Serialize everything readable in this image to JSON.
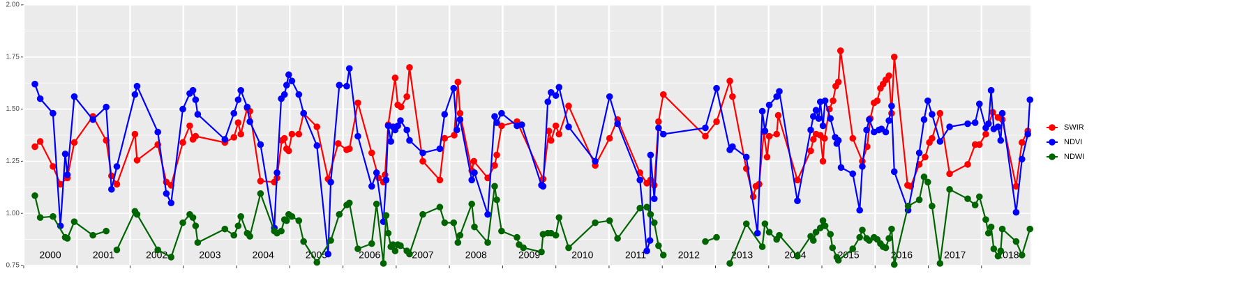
{
  "chart_data": {
    "type": "line",
    "xlim": [
      2000.0,
      2018.92
    ],
    "xticks": [
      2000,
      2001,
      2002,
      2003,
      2004,
      2005,
      2006,
      2007,
      2008,
      2009,
      2010,
      2011,
      2012,
      2013,
      2014,
      2015,
      2016,
      2017,
      2018
    ],
    "ylim": [
      0.75,
      2.0
    ],
    "yticks": [
      0.75,
      {
        "value": 1.0,
        "label": "1.00"
      },
      1.25,
      {
        "value": 1.5,
        "label": "1.50"
      },
      1.75,
      {
        "value": 2.0,
        "label": "2.00"
      }
    ],
    "grid": true,
    "legend": "right",
    "series": [
      {
        "name": "SWIR",
        "color": "#ff0000",
        "x": [
          2000.21,
          2000.31,
          2000.55,
          2000.69,
          2000.82,
          2000.95,
          2001.3,
          2001.55,
          2001.65,
          2001.75,
          2002.09,
          2002.13,
          2002.52,
          2002.68,
          2002.77,
          2002.99,
          2003.12,
          2003.18,
          2003.23,
          2003.78,
          2003.95,
          2004.03,
          2004.08,
          2004.2,
          2004.25,
          2004.45,
          2004.71,
          2004.76,
          2004.85,
          2004.9,
          2004.94,
          2004.98,
          2005.04,
          2005.17,
          2005.26,
          2005.51,
          2005.72,
          2005.91,
          2006.07,
          2006.12,
          2006.28,
          2006.54,
          2006.67,
          2006.76,
          2006.79,
          2006.85,
          2006.98,
          2007.03,
          2007.09,
          2007.2,
          2007.25,
          2007.5,
          2007.82,
          2007.91,
          2008.09,
          2008.16,
          2008.2,
          2008.42,
          2008.46,
          2008.72,
          2008.85,
          2008.89,
          2008.98,
          2009.27,
          2009.76,
          2009.87,
          2009.91,
          2010.0,
          2010.06,
          2010.24,
          2010.74,
          2011.01,
          2011.16,
          2011.58,
          2011.71,
          2011.78,
          2011.85,
          2011.93,
          2012.02,
          2012.81,
          2013.02,
          2013.27,
          2013.32,
          2013.58,
          2013.71,
          2013.76,
          2013.82,
          2013.91,
          2013.97,
          2014.01,
          2014.15,
          2014.18,
          2014.54,
          2014.79,
          2014.84,
          2014.89,
          2014.97,
          2015.02,
          2015.05,
          2015.14,
          2015.21,
          2015.26,
          2015.31,
          2015.35,
          2015.58,
          2015.76,
          2015.85,
          2015.91,
          2015.98,
          2016.04,
          2016.1,
          2016.15,
          2016.2,
          2016.26,
          2016.31,
          2016.36,
          2016.61,
          2016.67,
          2016.83,
          2016.94,
          2017.02,
          2017.07,
          2017.22,
          2017.4,
          2017.74,
          2017.88,
          2017.96,
          2018.08,
          2018.21,
          2018.31,
          2018.39,
          2018.65,
          2018.76,
          2018.87
        ],
        "values": [
          1.32,
          1.345,
          1.225,
          1.14,
          1.17,
          1.34,
          1.465,
          1.35,
          1.18,
          1.14,
          1.38,
          1.255,
          1.33,
          1.15,
          1.135,
          1.34,
          1.42,
          1.355,
          1.37,
          1.34,
          1.365,
          1.435,
          1.38,
          1.505,
          1.49,
          1.155,
          1.15,
          1.17,
          1.35,
          1.36,
          1.31,
          1.3,
          1.38,
          1.38,
          1.48,
          1.415,
          1.165,
          1.335,
          1.305,
          1.31,
          1.53,
          1.29,
          1.17,
          1.15,
          1.185,
          1.425,
          1.65,
          1.52,
          1.51,
          1.56,
          1.7,
          1.25,
          1.16,
          1.36,
          1.375,
          1.63,
          1.48,
          1.205,
          1.25,
          1.17,
          1.23,
          1.28,
          1.42,
          1.44,
          1.165,
          1.395,
          1.35,
          1.42,
          1.38,
          1.515,
          1.23,
          1.36,
          1.45,
          1.195,
          1.145,
          1.16,
          1.135,
          1.44,
          1.57,
          1.37,
          1.44,
          1.635,
          1.56,
          1.215,
          1.08,
          1.13,
          1.14,
          1.39,
          1.27,
          1.37,
          1.38,
          1.47,
          1.16,
          1.3,
          1.355,
          1.38,
          1.375,
          1.25,
          1.36,
          1.5,
          1.54,
          1.61,
          1.63,
          1.78,
          1.36,
          1.25,
          1.32,
          1.455,
          1.53,
          1.54,
          1.6,
          1.62,
          1.64,
          1.66,
          1.48,
          1.75,
          1.135,
          1.13,
          1.235,
          1.27,
          1.34,
          1.36,
          1.48,
          1.19,
          1.235,
          1.33,
          1.33,
          1.38,
          1.485,
          1.46,
          1.45,
          1.13,
          1.34,
          1.395
        ]
      },
      {
        "name": "NDVI",
        "color": "#0000ff",
        "x": [
          2000.21,
          2000.31,
          2000.55,
          2000.69,
          2000.78,
          2000.82,
          2000.95,
          2001.3,
          2001.55,
          2001.65,
          2001.75,
          2002.09,
          2002.13,
          2002.52,
          2002.68,
          2002.77,
          2002.99,
          2003.12,
          2003.18,
          2003.23,
          2003.27,
          2003.78,
          2003.95,
          2004.03,
          2004.08,
          2004.2,
          2004.25,
          2004.45,
          2004.71,
          2004.76,
          2004.84,
          2004.9,
          2004.94,
          2004.98,
          2005.04,
          2005.17,
          2005.26,
          2005.51,
          2005.72,
          2005.77,
          2005.93,
          2006.07,
          2006.12,
          2006.28,
          2006.54,
          2006.63,
          2006.76,
          2006.81,
          2006.85,
          2006.9,
          2006.94,
          2006.98,
          2007.03,
          2007.08,
          2007.2,
          2007.25,
          2007.5,
          2007.82,
          2007.91,
          2008.08,
          2008.14,
          2008.2,
          2008.42,
          2008.47,
          2008.72,
          2008.85,
          2008.89,
          2008.98,
          2009.27,
          2009.36,
          2009.73,
          2009.76,
          2009.85,
          2009.91,
          2010.0,
          2010.06,
          2010.24,
          2010.74,
          2011.01,
          2011.16,
          2011.58,
          2011.71,
          2011.77,
          2011.78,
          2011.85,
          2011.93,
          2012.02,
          2012.81,
          2013.02,
          2013.27,
          2013.32,
          2013.58,
          2013.79,
          2013.88,
          2013.93,
          2014.01,
          2014.15,
          2014.2,
          2014.54,
          2014.79,
          2014.84,
          2014.89,
          2014.94,
          2014.97,
          2015.02,
          2015.06,
          2015.16,
          2015.25,
          2015.28,
          2015.31,
          2015.36,
          2015.58,
          2015.71,
          2015.76,
          2015.84,
          2015.89,
          2015.98,
          2016.07,
          2016.12,
          2016.2,
          2016.26,
          2016.31,
          2016.36,
          2016.62,
          2016.83,
          2016.92,
          2016.99,
          2017.07,
          2017.22,
          2017.4,
          2017.74,
          2017.88,
          2017.96,
          2018.08,
          2018.13,
          2018.18,
          2018.23,
          2018.31,
          2018.36,
          2018.39,
          2018.65,
          2018.76,
          2018.87,
          2018.91
        ],
        "values": [
          1.62,
          1.55,
          1.48,
          0.94,
          1.285,
          1.185,
          1.56,
          1.45,
          1.51,
          1.115,
          1.225,
          1.57,
          1.61,
          1.39,
          1.095,
          1.05,
          1.5,
          1.575,
          1.59,
          1.545,
          1.475,
          1.355,
          1.48,
          1.545,
          1.59,
          1.51,
          1.44,
          1.33,
          0.93,
          1.195,
          1.55,
          1.57,
          1.615,
          1.665,
          1.635,
          1.57,
          1.48,
          1.325,
          0.805,
          1.15,
          1.615,
          1.61,
          1.695,
          1.37,
          1.13,
          1.195,
          0.96,
          1.16,
          1.42,
          1.345,
          1.415,
          1.4,
          1.42,
          1.445,
          1.4,
          1.35,
          1.29,
          1.31,
          1.475,
          1.6,
          1.4,
          1.45,
          1.16,
          1.195,
          0.995,
          1.465,
          1.435,
          1.48,
          1.42,
          1.425,
          1.135,
          1.13,
          1.535,
          1.58,
          1.565,
          1.605,
          1.415,
          1.25,
          1.56,
          1.43,
          1.16,
          0.82,
          0.87,
          1.28,
          1.07,
          1.41,
          1.38,
          1.41,
          1.6,
          1.305,
          1.32,
          1.27,
          0.905,
          1.49,
          1.395,
          1.52,
          1.56,
          1.585,
          1.06,
          1.4,
          1.465,
          1.495,
          1.455,
          1.535,
          1.42,
          1.54,
          1.455,
          1.365,
          1.335,
          1.35,
          1.22,
          1.19,
          1.015,
          1.225,
          1.4,
          1.45,
          1.39,
          1.4,
          1.405,
          1.39,
          1.445,
          1.515,
          1.2,
          1.015,
          1.29,
          1.45,
          1.54,
          1.475,
          1.345,
          1.415,
          1.43,
          1.435,
          1.525,
          1.41,
          1.43,
          1.59,
          1.405,
          1.415,
          1.35,
          1.48,
          1.005,
          1.26,
          1.38,
          1.545
        ]
      },
      {
        "name": "NDWI",
        "color": "#006400",
        "x": [
          2000.21,
          2000.31,
          2000.55,
          2000.78,
          2000.82,
          2000.95,
          2001.3,
          2001.55,
          null,
          2001.75,
          2002.09,
          2002.13,
          2002.52,
          2002.77,
          2002.99,
          2003.12,
          2003.18,
          2003.23,
          2003.27,
          2003.78,
          2003.95,
          2004.03,
          2004.08,
          2004.2,
          2004.25,
          2004.45,
          2004.71,
          2004.76,
          2004.84,
          2004.9,
          2004.94,
          2004.98,
          2005.04,
          2005.17,
          2005.26,
          2005.51,
          2005.77,
          2005.93,
          2006.07,
          2006.12,
          2006.28,
          2006.54,
          2006.63,
          2006.76,
          2006.81,
          2006.85,
          2006.9,
          2006.94,
          2006.98,
          2007.03,
          2007.08,
          2007.2,
          2007.25,
          2007.5,
          2007.82,
          2007.91,
          2008.08,
          2008.16,
          2008.2,
          2008.42,
          2008.47,
          2008.72,
          2008.85,
          2008.89,
          2008.98,
          2009.27,
          2009.31,
          2009.39,
          2009.73,
          2009.76,
          2009.85,
          2009.91,
          2010.0,
          2010.06,
          2010.24,
          2010.74,
          2011.01,
          2011.16,
          2011.58,
          2011.71,
          2011.78,
          2011.85,
          2011.93,
          2012.02,
          null,
          2012.81,
          2013.02,
          null,
          2013.27,
          2013.58,
          2013.88,
          2013.93,
          2014.01,
          2014.15,
          2014.2,
          2014.54,
          2014.79,
          2014.84,
          2014.89,
          2014.97,
          2015.02,
          2015.06,
          2015.16,
          2015.2,
          2015.28,
          2015.31,
          2015.58,
          2015.71,
          2015.76,
          2015.84,
          2015.89,
          2015.98,
          2016.04,
          2016.1,
          2016.15,
          2016.2,
          2016.26,
          2016.31,
          2016.36,
          2016.62,
          2016.83,
          2016.92,
          2016.99,
          2017.07,
          2017.22,
          2017.4,
          2017.74,
          2017.88,
          2017.96,
          2018.08,
          2018.13,
          2018.18,
          2018.23,
          2018.31,
          2018.36,
          2018.39,
          2018.65,
          2018.76,
          2018.91
        ],
        "values": [
          1.085,
          0.98,
          0.985,
          0.885,
          0.88,
          0.96,
          0.895,
          0.915,
          null,
          0.825,
          1.01,
          0.995,
          0.825,
          0.79,
          0.955,
          0.995,
          0.98,
          0.94,
          0.86,
          0.925,
          0.895,
          0.94,
          0.985,
          0.905,
          0.89,
          1.095,
          0.915,
          0.905,
          0.915,
          0.97,
          0.965,
          0.995,
          0.985,
          0.965,
          0.865,
          0.765,
          0.87,
          0.995,
          1.04,
          1.05,
          0.83,
          0.855,
          1.045,
          0.76,
          0.99,
          0.905,
          0.84,
          0.85,
          0.82,
          0.85,
          0.845,
          0.82,
          0.805,
          0.995,
          1.03,
          0.955,
          0.955,
          0.86,
          0.895,
          1.045,
          0.935,
          0.86,
          1.13,
          1.065,
          0.915,
          0.885,
          0.85,
          0.835,
          0.815,
          0.9,
          0.905,
          0.905,
          0.895,
          0.98,
          0.835,
          0.955,
          0.965,
          0.88,
          1.025,
          1.03,
          0.995,
          0.955,
          0.845,
          0.8,
          null,
          0.865,
          0.885,
          null,
          0.76,
          0.95,
          0.84,
          0.95,
          0.91,
          0.875,
          0.895,
          0.795,
          0.89,
          0.87,
          0.91,
          0.93,
          0.965,
          0.94,
          0.9,
          0.835,
          0.79,
          0.775,
          0.83,
          0.885,
          0.92,
          0.88,
          0.87,
          0.885,
          0.875,
          0.855,
          0.84,
          0.835,
          0.88,
          0.925,
          0.755,
          1.035,
          1.065,
          1.175,
          1.15,
          1.035,
          0.76,
          1.115,
          1.07,
          1.04,
          1.08,
          0.97,
          0.905,
          0.935,
          0.83,
          0.795,
          0.82,
          0.925,
          0.865,
          0.8,
          0.925
        ]
      }
    ]
  }
}
